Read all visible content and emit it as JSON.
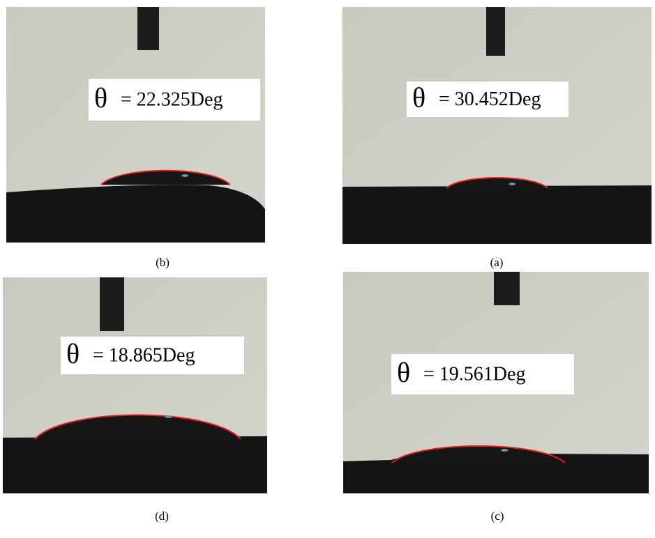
{
  "panels": [
    {
      "caption": "(b)",
      "symbol": "θ",
      "value": "= 22.325Deg"
    },
    {
      "caption": "(a)",
      "symbol": "θ",
      "value": "= 30.452Deg"
    },
    {
      "caption": "(d)",
      "symbol": "θ",
      "value": "= 18.865Deg"
    },
    {
      "caption": "(c)",
      "symbol": "θ",
      "value": "= 19.561Deg"
    }
  ]
}
